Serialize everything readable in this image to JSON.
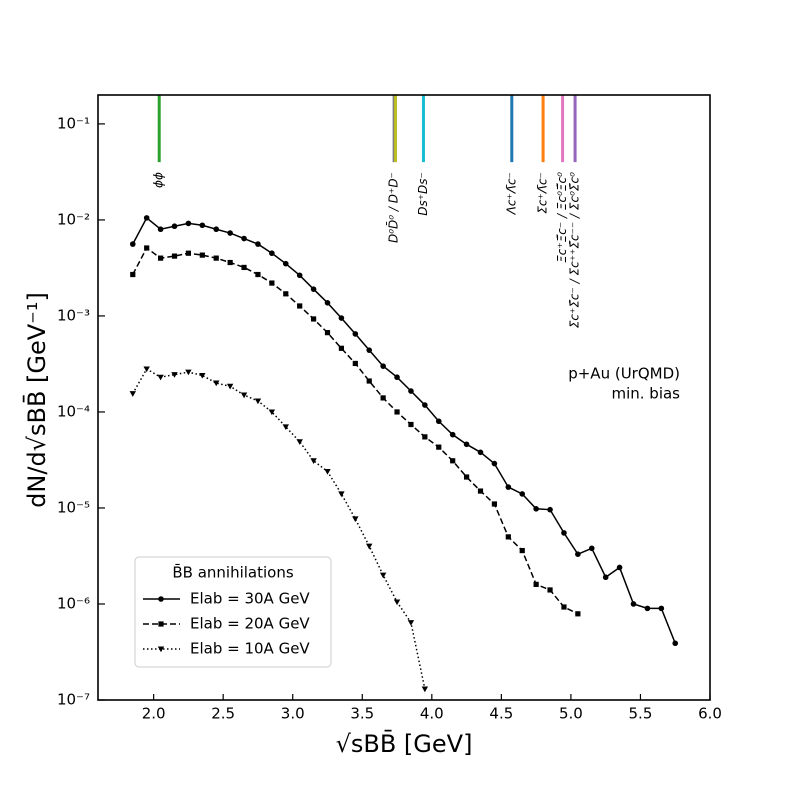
{
  "chart_data": {
    "type": "line",
    "log_y": true,
    "xlabel": "√sBB̄ [GeV]",
    "ylabel": "dN/d√sBB̄ [GeV⁻¹]",
    "xlim": [
      1.6,
      6.0
    ],
    "ylim": [
      1e-07,
      0.2
    ],
    "xticks": [
      {
        "value": 2.0,
        "label": "2.0"
      },
      {
        "value": 2.5,
        "label": "2.5"
      },
      {
        "value": 3.0,
        "label": "3.0"
      },
      {
        "value": 3.5,
        "label": "3.5"
      },
      {
        "value": 4.0,
        "label": "4.0"
      },
      {
        "value": 4.5,
        "label": "4.5"
      },
      {
        "value": 5.0,
        "label": "5.0"
      },
      {
        "value": 5.5,
        "label": "5.5"
      },
      {
        "value": 6.0,
        "label": "6.0"
      }
    ],
    "yticks": [
      {
        "value": 1e-07,
        "label": "10⁻⁷"
      },
      {
        "value": 1e-06,
        "label": "10⁻⁶"
      },
      {
        "value": 1e-05,
        "label": "10⁻⁵"
      },
      {
        "value": 0.0001,
        "label": "10⁻⁴"
      },
      {
        "value": 0.001,
        "label": "10⁻³"
      },
      {
        "value": 0.01,
        "label": "10⁻²"
      },
      {
        "value": 0.1,
        "label": "10⁻¹"
      }
    ],
    "legend_title": "B̄B annihilations",
    "legend_position": "lower left",
    "annotations": [
      "p+Au (UrQMD)",
      "min. bias"
    ],
    "series": [
      {
        "name": "Elab = 30A GeV",
        "color": "#000000",
        "marker": "circle",
        "linestyle": "solid",
        "x": [
          1.85,
          1.95,
          2.05,
          2.15,
          2.25,
          2.35,
          2.45,
          2.55,
          2.65,
          2.75,
          2.85,
          2.95,
          3.05,
          3.15,
          3.25,
          3.35,
          3.45,
          3.55,
          3.65,
          3.75,
          3.85,
          3.95,
          4.05,
          4.15,
          4.25,
          4.35,
          4.45,
          4.55,
          4.65,
          4.75,
          4.85,
          4.95,
          5.05,
          5.15,
          5.25,
          5.35,
          5.45,
          5.55,
          5.65,
          5.75
        ],
        "values": [
          0.0056,
          0.0105,
          0.008,
          0.0086,
          0.0092,
          0.0088,
          0.008,
          0.0073,
          0.0064,
          0.0056,
          0.0045,
          0.0035,
          0.00265,
          0.0019,
          0.00137,
          0.00095,
          0.00065,
          0.00044,
          0.0003,
          0.00023,
          0.000165,
          0.000118,
          8e-05,
          5.8e-05,
          4.6e-05,
          3.8e-05,
          2.9e-05,
          1.65e-05,
          1.4e-05,
          9.8e-06,
          9.6e-06,
          5.5e-06,
          3.3e-06,
          3.8e-06,
          1.9e-06,
          2.4e-06,
          1e-06,
          9e-07,
          9e-07,
          3.9e-07
        ]
      },
      {
        "name": "Elab = 20A GeV",
        "color": "#000000",
        "marker": "square",
        "linestyle": "dashed",
        "x": [
          1.85,
          1.95,
          2.05,
          2.15,
          2.25,
          2.35,
          2.45,
          2.55,
          2.65,
          2.75,
          2.85,
          2.95,
          3.05,
          3.15,
          3.25,
          3.35,
          3.45,
          3.55,
          3.65,
          3.75,
          3.85,
          3.95,
          4.05,
          4.15,
          4.25,
          4.35,
          4.45,
          4.55,
          4.65,
          4.75,
          4.85,
          4.95,
          5.05
        ],
        "values": [
          0.0027,
          0.0051,
          0.004,
          0.0042,
          0.0045,
          0.0043,
          0.004,
          0.0036,
          0.0032,
          0.0027,
          0.0022,
          0.0017,
          0.00127,
          0.00093,
          0.00067,
          0.00046,
          0.00032,
          0.00021,
          0.00014,
          0.0001,
          7.4e-05,
          5.5e-05,
          4.3e-05,
          3.1e-05,
          2.1e-05,
          1.5e-05,
          1.1e-05,
          5e-06,
          3.6e-06,
          1.6e-06,
          1.4e-06,
          9.3e-07,
          7.9e-07
        ]
      },
      {
        "name": "Elab = 10A GeV",
        "color": "#000000",
        "marker": "triangle-down",
        "linestyle": "dotted",
        "x": [
          1.85,
          1.95,
          2.05,
          2.15,
          2.25,
          2.35,
          2.45,
          2.55,
          2.65,
          2.75,
          2.85,
          2.95,
          3.05,
          3.15,
          3.25,
          3.35,
          3.45,
          3.55,
          3.65,
          3.75,
          3.85,
          3.95
        ],
        "values": [
          0.000155,
          0.00028,
          0.00023,
          0.000245,
          0.00026,
          0.00024,
          0.0002,
          0.000185,
          0.00015,
          0.00013,
          0.0001,
          7e-05,
          4.9e-05,
          3.1e-05,
          2.4e-05,
          1.4e-05,
          7.7e-06,
          4e-06,
          2e-06,
          1.05e-06,
          6.4e-07,
          1.3e-07
        ]
      }
    ],
    "thresholds": [
      {
        "x": 2.04,
        "color": "#2ca02c",
        "label": "ϕϕ"
      },
      {
        "x": 3.729,
        "color": "#7f7f7f",
        "label": "D⁰D̄⁰ / D⁺D⁻"
      },
      {
        "x": 3.739,
        "color": "#bcbd22",
        "label": null
      },
      {
        "x": 3.94,
        "color": "#17becf",
        "label": "Ds⁺Ds⁻"
      },
      {
        "x": 4.575,
        "color": "#1f77b4",
        "label": "Λc⁺Λ̄c⁻"
      },
      {
        "x": 4.8,
        "color": "#ff7f0e",
        "label": "Σc⁺Λ̄c⁻"
      },
      {
        "x": 4.94,
        "color": "#e377c2",
        "label": "Ξc⁺Ξ̄c⁻ / Ξc⁰Ξ̄c⁰"
      },
      {
        "x": 5.03,
        "color": "#9467bd",
        "label": "Σc⁺Σ̄c⁻ / Σc⁺⁺Σ̄c⁻⁻ / Σc⁰Σ̄c⁰"
      }
    ],
    "threshold_ymin": 0.04
  }
}
